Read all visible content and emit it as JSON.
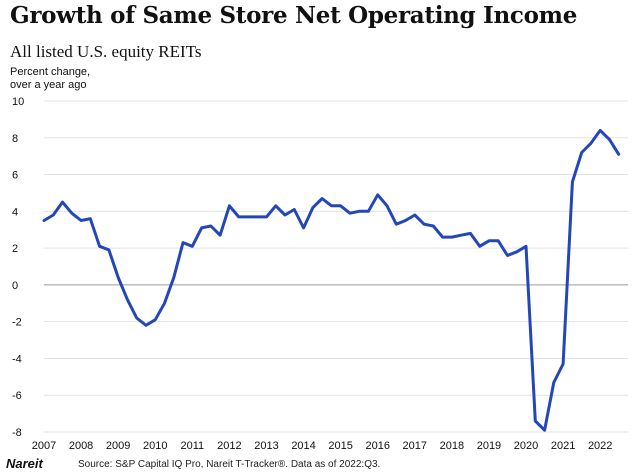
{
  "chart_data": {
    "type": "line",
    "title": "Growth of Same Store Net Operating Income",
    "subtitle": "All listed U.S. equity REITs",
    "ylabel_lines": [
      "Percent change,",
      "over a year ago"
    ],
    "xlabel": "",
    "ylim": [
      -8,
      10
    ],
    "yticks": [
      -8,
      -6,
      -4,
      -2,
      0,
      2,
      4,
      6,
      8,
      10
    ],
    "xlim": [
      2007.0,
      2022.75
    ],
    "xticks": [
      {
        "label": "2007",
        "x": 2007
      },
      {
        "label": "2008",
        "x": 2008
      },
      {
        "label": "2009",
        "x": 2009
      },
      {
        "label": "2010",
        "x": 2010
      },
      {
        "label": "2011",
        "x": 2011
      },
      {
        "label": "2012",
        "x": 2012
      },
      {
        "label": "2013",
        "x": 2013
      },
      {
        "label": "2014",
        "x": 2014
      },
      {
        "label": "2015",
        "x": 2015
      },
      {
        "label": "2016",
        "x": 2016
      },
      {
        "label": "2017",
        "x": 2017
      },
      {
        "label": "2018",
        "x": 2018
      },
      {
        "label": "2019",
        "x": 2019
      },
      {
        "label": "2020",
        "x": 2020
      },
      {
        "label": "2021",
        "x": 2021
      },
      {
        "label": "2022",
        "x": 2022
      }
    ],
    "grid": true,
    "line_color": "#2347b8",
    "series": [
      {
        "name": "",
        "x": [
          2007.0,
          2007.25,
          2007.5,
          2007.75,
          2008.0,
          2008.25,
          2008.5,
          2008.75,
          2009.0,
          2009.25,
          2009.5,
          2009.75,
          2010.0,
          2010.25,
          2010.5,
          2010.75,
          2011.0,
          2011.25,
          2011.5,
          2011.75,
          2012.0,
          2012.25,
          2012.5,
          2012.75,
          2013.0,
          2013.25,
          2013.5,
          2013.75,
          2014.0,
          2014.25,
          2014.5,
          2014.75,
          2015.0,
          2015.25,
          2015.5,
          2015.75,
          2016.0,
          2016.25,
          2016.5,
          2016.75,
          2017.0,
          2017.25,
          2017.5,
          2017.75,
          2018.0,
          2018.25,
          2018.5,
          2018.75,
          2019.0,
          2019.25,
          2019.5,
          2019.75,
          2020.0,
          2020.25,
          2020.5,
          2020.75,
          2021.0,
          2021.25,
          2021.5,
          2021.75,
          2022.0,
          2022.25,
          2022.5
        ],
        "values": [
          3.5,
          3.8,
          4.5,
          3.9,
          3.5,
          3.6,
          2.1,
          1.9,
          0.4,
          -0.8,
          -1.8,
          -2.2,
          -1.9,
          -1.0,
          0.4,
          2.3,
          2.1,
          3.1,
          3.2,
          2.7,
          4.3,
          3.7,
          3.7,
          3.7,
          3.7,
          4.3,
          3.8,
          4.1,
          3.1,
          4.2,
          4.7,
          4.3,
          4.3,
          3.9,
          4.0,
          4.0,
          4.9,
          4.3,
          3.3,
          3.5,
          3.8,
          3.3,
          3.2,
          2.6,
          2.6,
          2.7,
          2.8,
          2.1,
          2.4,
          2.4,
          1.6,
          1.8,
          2.1,
          -7.4,
          -7.9,
          -5.3,
          -4.3,
          5.6,
          7.2,
          7.7,
          8.4,
          7.9,
          7.1
        ]
      }
    ]
  },
  "footer": {
    "logo": "Nareit",
    "source": "Source: S&P Capital IQ Pro, Nareit T-Tracker®. Data as of 2022:Q3."
  }
}
